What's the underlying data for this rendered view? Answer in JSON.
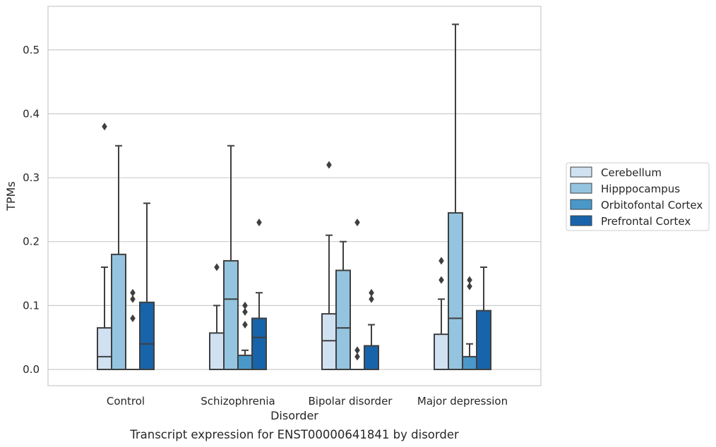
{
  "chart_data": {
    "type": "box",
    "title": "",
    "caption": "Transcript expression for ENST00000641841 by disorder",
    "xlabel": "Disorder",
    "ylabel": "TPMs",
    "ylim": [
      -0.025,
      0.57
    ],
    "yticks": [
      0.0,
      0.1,
      0.2,
      0.3,
      0.4,
      0.5
    ],
    "ytick_labels": [
      "0.0",
      "0.1",
      "0.2",
      "0.3",
      "0.4",
      "0.5"
    ],
    "grid": true,
    "legend_position": "right",
    "categories": [
      "Control",
      "Schizophrenia",
      "Bipolar disorder",
      "Major depression"
    ],
    "series": [
      {
        "name": "Cerebellum",
        "color": "#d0e1f2",
        "boxes": [
          {
            "min": 0.0,
            "q1": 0.0,
            "median": 0.02,
            "q3": 0.065,
            "max": 0.16,
            "outliers": [
              0.38
            ]
          },
          {
            "min": 0.0,
            "q1": 0.0,
            "median": 0.0,
            "q3": 0.057,
            "max": 0.1,
            "outliers": [
              0.16
            ]
          },
          {
            "min": 0.0,
            "q1": 0.0,
            "median": 0.045,
            "q3": 0.087,
            "max": 0.21,
            "outliers": [
              0.32
            ]
          },
          {
            "min": 0.0,
            "q1": 0.0,
            "median": 0.0,
            "q3": 0.055,
            "max": 0.11,
            "outliers": [
              0.14,
              0.17
            ]
          }
        ]
      },
      {
        "name": "Hipppocampus",
        "color": "#94c4df",
        "boxes": [
          {
            "min": 0.0,
            "q1": 0.0,
            "median": 0.0,
            "q3": 0.18,
            "max": 0.35,
            "outliers": []
          },
          {
            "min": 0.0,
            "q1": 0.0,
            "median": 0.11,
            "q3": 0.17,
            "max": 0.35,
            "outliers": []
          },
          {
            "min": 0.0,
            "q1": 0.0,
            "median": 0.065,
            "q3": 0.155,
            "max": 0.2,
            "outliers": []
          },
          {
            "min": 0.0,
            "q1": 0.0,
            "median": 0.08,
            "q3": 0.245,
            "max": 0.54,
            "outliers": []
          }
        ]
      },
      {
        "name": "Orbitofontal Cortex",
        "color": "#4a98c9",
        "boxes": [
          {
            "min": 0.0,
            "q1": 0.0,
            "median": 0.0,
            "q3": 0.0,
            "max": 0.0,
            "outliers": [
              0.08,
              0.11,
              0.12
            ]
          },
          {
            "min": 0.0,
            "q1": 0.0,
            "median": 0.0,
            "q3": 0.022,
            "max": 0.03,
            "outliers": [
              0.07,
              0.09,
              0.1
            ]
          },
          {
            "min": 0.0,
            "q1": 0.0,
            "median": 0.0,
            "q3": 0.0,
            "max": 0.0,
            "outliers": [
              0.02,
              0.03,
              0.23
            ]
          },
          {
            "min": 0.0,
            "q1": 0.0,
            "median": 0.0,
            "q3": 0.02,
            "max": 0.04,
            "outliers": [
              0.13,
              0.14
            ]
          }
        ]
      },
      {
        "name": "Prefrontal Cortex",
        "color": "#1764ab",
        "boxes": [
          {
            "min": 0.0,
            "q1": 0.0,
            "median": 0.04,
            "q3": 0.105,
            "max": 0.26,
            "outliers": []
          },
          {
            "min": 0.0,
            "q1": 0.0,
            "median": 0.05,
            "q3": 0.08,
            "max": 0.12,
            "outliers": [
              0.23
            ]
          },
          {
            "min": 0.0,
            "q1": 0.0,
            "median": 0.0,
            "q3": 0.037,
            "max": 0.07,
            "outliers": [
              0.11,
              0.12
            ]
          },
          {
            "min": 0.0,
            "q1": 0.0,
            "median": 0.0,
            "q3": 0.092,
            "max": 0.16,
            "outliers": []
          }
        ]
      }
    ]
  },
  "colors": {
    "grid": "#cccccc",
    "spine": "#cccccc",
    "box_edge": "#3f3f3f",
    "text": "#262626"
  }
}
